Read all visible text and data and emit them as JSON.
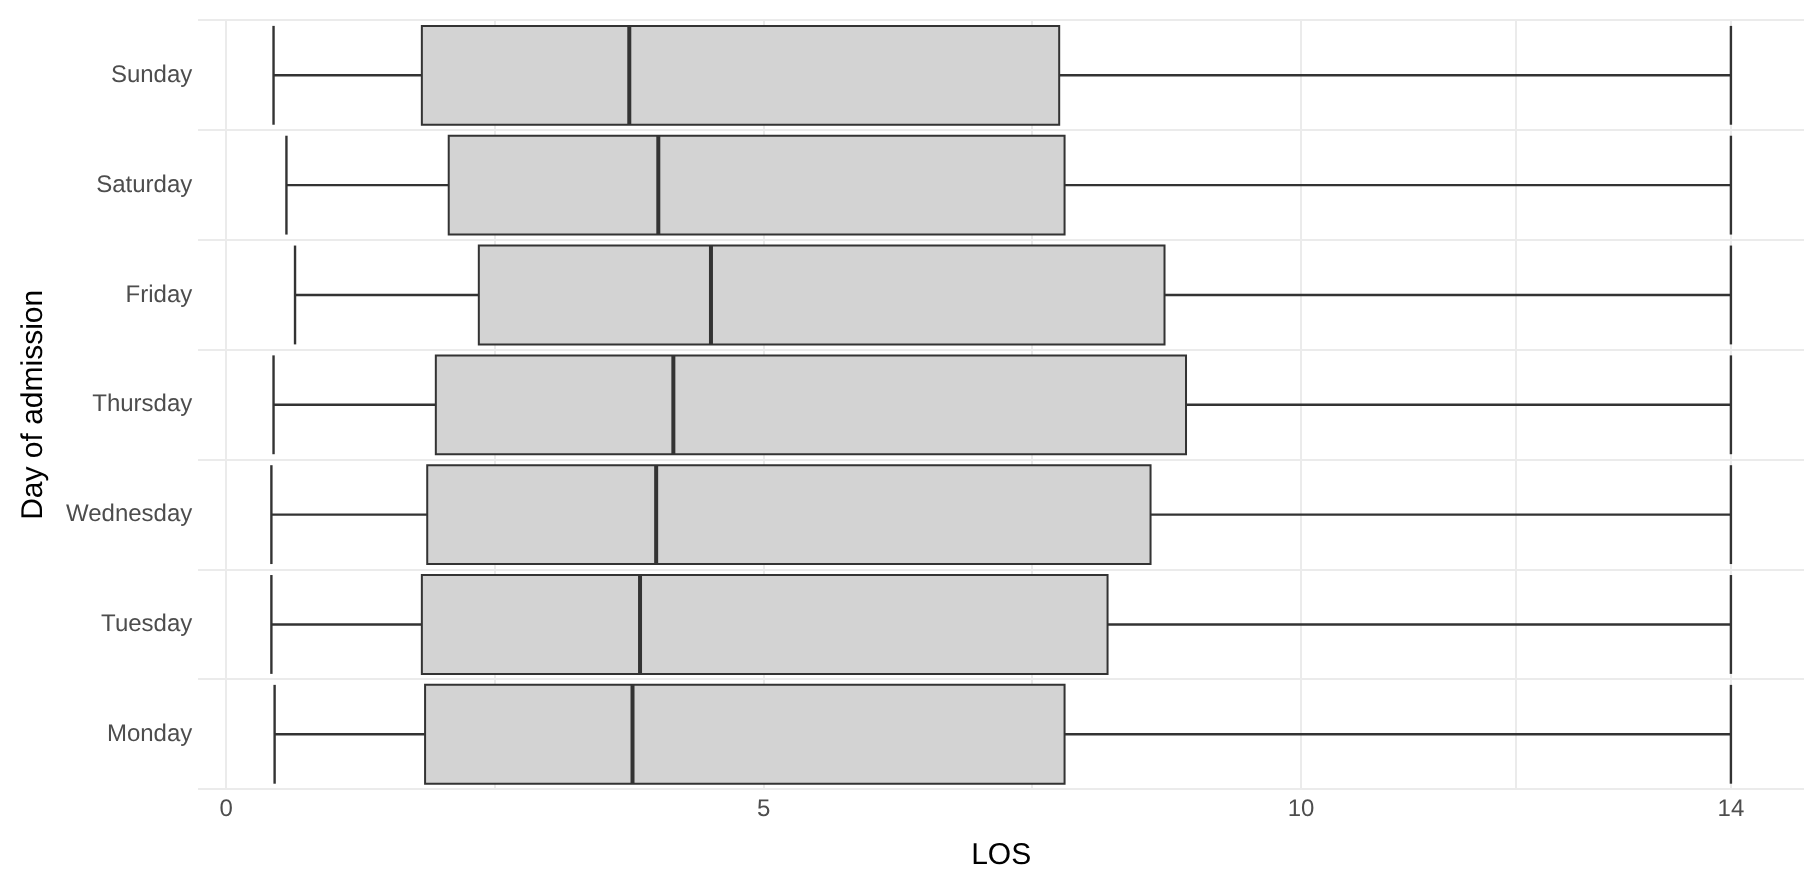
{
  "chart_data": {
    "type": "box",
    "orientation": "horizontal",
    "xlabel": "LOS",
    "ylabel": "Day of admission",
    "categories": [
      "Sunday",
      "Saturday",
      "Friday",
      "Thursday",
      "Wednesday",
      "Tuesday",
      "Monday"
    ],
    "color": "#d3d3d3",
    "boxes": [
      {
        "low": 0.44,
        "q1": 1.82,
        "median": 3.75,
        "q3": 7.75,
        "high": 14
      },
      {
        "low": 0.56,
        "q1": 2.07,
        "median": 4.02,
        "q3": 7.8,
        "high": 14
      },
      {
        "low": 0.64,
        "q1": 2.35,
        "median": 4.51,
        "q3": 8.73,
        "high": 14
      },
      {
        "low": 0.44,
        "q1": 1.95,
        "median": 4.16,
        "q3": 8.93,
        "high": 14
      },
      {
        "low": 0.42,
        "q1": 1.87,
        "median": 4.0,
        "q3": 8.6,
        "high": 14
      },
      {
        "low": 0.42,
        "q1": 1.82,
        "median": 3.85,
        "q3": 8.2,
        "high": 14
      },
      {
        "low": 0.45,
        "q1": 1.85,
        "median": 3.78,
        "q3": 7.8,
        "high": 14
      }
    ],
    "xlim": [
      -0.26,
      14.68
    ],
    "xticks": [
      0,
      {
        "value": 2.5,
        "label": null
      },
      5,
      {
        "value": 7.5,
        "label": null
      },
      10,
      {
        "value": 12,
        "label": null
      },
      14
    ],
    "grid": true,
    "legend": false
  }
}
